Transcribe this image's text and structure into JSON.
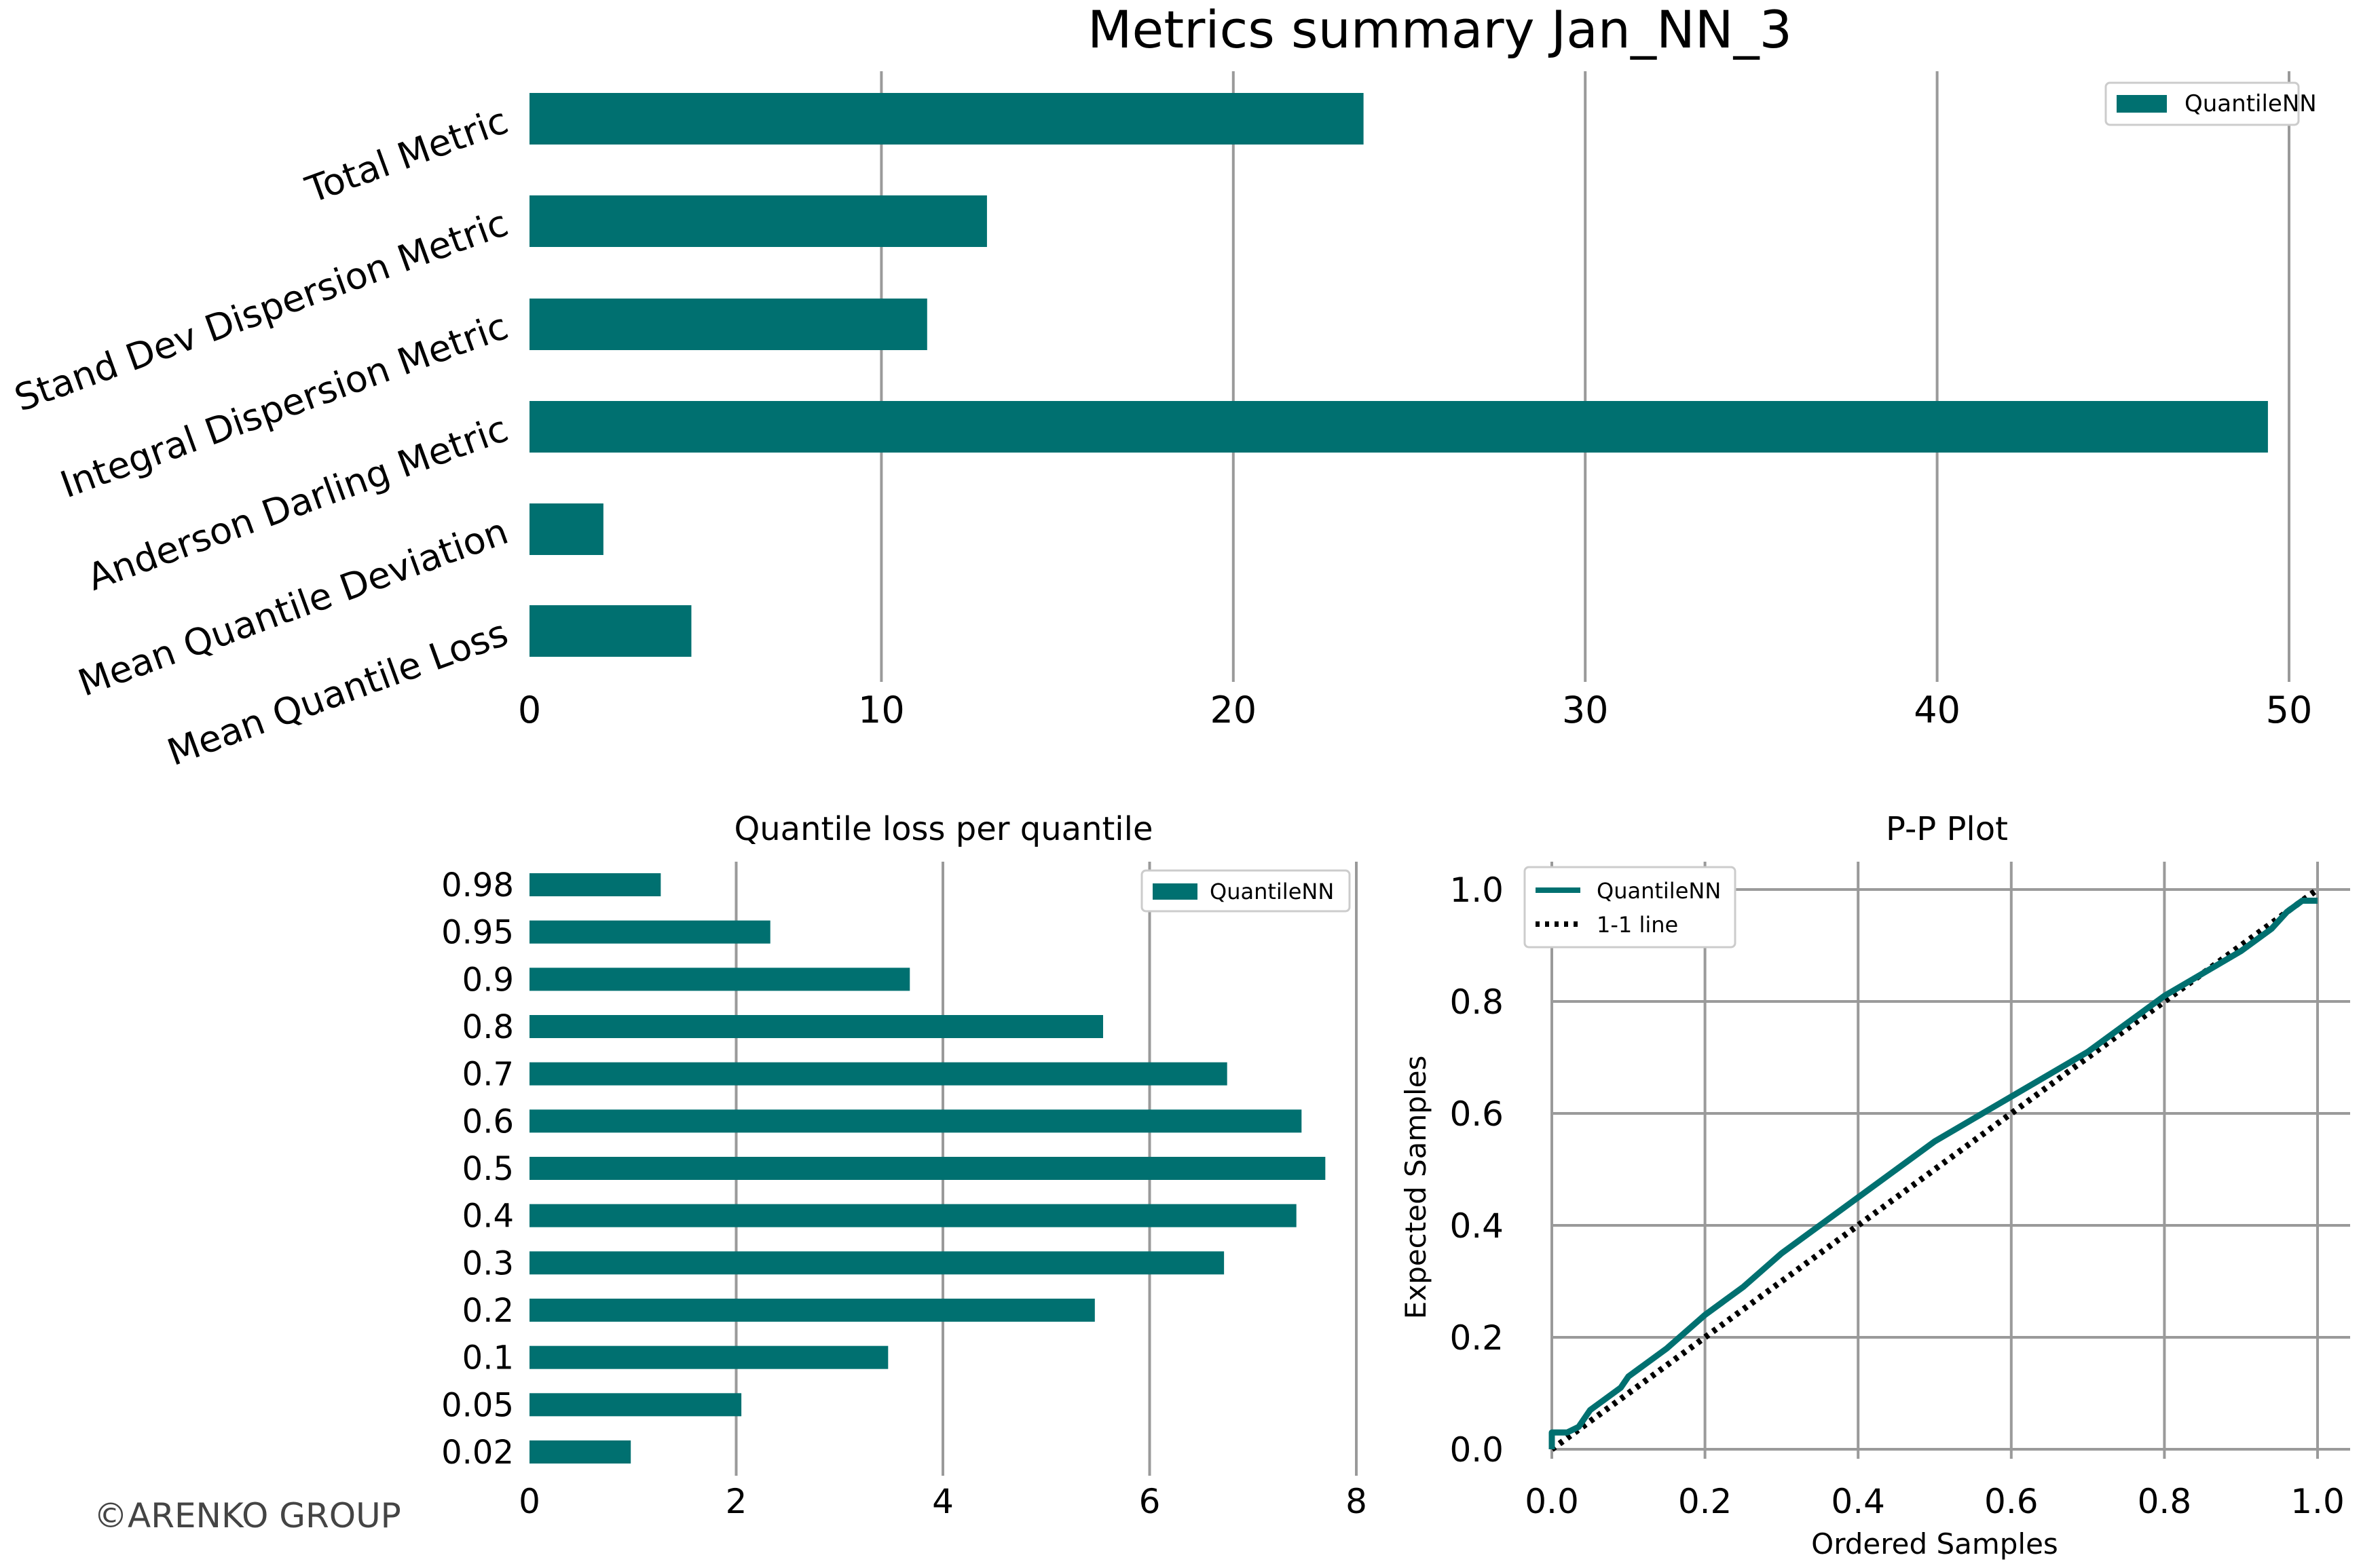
{
  "credit": "©ARENKO GROUP",
  "colors": {
    "bar": "#007070",
    "line": "#007070",
    "grid": "#9a9a9a",
    "ref": "#000000"
  },
  "chart_data": [
    {
      "type": "bar",
      "orientation": "horizontal",
      "title": "Metrics summary Jan_NN_3",
      "categories": [
        "Total Metric",
        "Stand Dev Dispersion Metric",
        "Integral Dispersion Metric",
        "Anderson Darling Metric",
        "Mean Quantile Deviation",
        "Mean Quantile Loss"
      ],
      "series": [
        {
          "name": "QuantileNN",
          "values": [
            23.7,
            13.0,
            11.3,
            49.4,
            2.1,
            4.6
          ]
        }
      ],
      "xlim": [
        0,
        50
      ],
      "xticks": [
        0,
        10,
        20,
        30,
        40,
        50
      ],
      "grid": "vertical",
      "legend": "top-right"
    },
    {
      "type": "bar",
      "orientation": "horizontal",
      "title": "Quantile loss per quantile",
      "categories": [
        "0.98",
        "0.95",
        "0.9",
        "0.8",
        "0.7",
        "0.6",
        "0.5",
        "0.4",
        "0.3",
        "0.2",
        "0.1",
        "0.05",
        "0.02"
      ],
      "series": [
        {
          "name": "QuantileNN",
          "values": [
            1.27,
            2.33,
            3.68,
            5.55,
            6.75,
            7.47,
            7.7,
            7.42,
            6.72,
            5.47,
            3.47,
            2.05,
            0.98
          ]
        }
      ],
      "xlim": [
        0,
        8
      ],
      "xticks": [
        0,
        2,
        4,
        6,
        8
      ],
      "grid": "vertical",
      "legend": "top-right"
    },
    {
      "type": "line",
      "title": "P-P Plot",
      "xlabel": "Ordered Samples",
      "ylabel": "Expected Samples",
      "xlim": [
        0,
        1
      ],
      "ylim": [
        0,
        1
      ],
      "xticks": [
        "0.0",
        "0.2",
        "0.4",
        "0.6",
        "0.8",
        "1.0"
      ],
      "yticks": [
        "0.0",
        "0.2",
        "0.4",
        "0.6",
        "0.8",
        "1.0"
      ],
      "grid": "both",
      "legend": "top-left",
      "series": [
        {
          "name": "QuantileNN",
          "style": "solid",
          "x": [
            0.0,
            0.0,
            0.02,
            0.035,
            0.05,
            0.07,
            0.09,
            0.1,
            0.12,
            0.15,
            0.2,
            0.25,
            0.3,
            0.35,
            0.4,
            0.45,
            0.5,
            0.55,
            0.6,
            0.65,
            0.7,
            0.75,
            0.8,
            0.85,
            0.9,
            0.94,
            0.96,
            0.97,
            0.98,
            1.0
          ],
          "y": [
            0.0,
            0.03,
            0.03,
            0.04,
            0.07,
            0.09,
            0.11,
            0.13,
            0.15,
            0.18,
            0.24,
            0.29,
            0.35,
            0.4,
            0.45,
            0.5,
            0.55,
            0.59,
            0.63,
            0.67,
            0.71,
            0.76,
            0.81,
            0.85,
            0.89,
            0.93,
            0.96,
            0.97,
            0.98,
            0.98
          ]
        },
        {
          "name": "1-1 line",
          "style": "dotted",
          "x": [
            0.0,
            1.0
          ],
          "y": [
            0.0,
            1.0
          ]
        }
      ]
    }
  ]
}
